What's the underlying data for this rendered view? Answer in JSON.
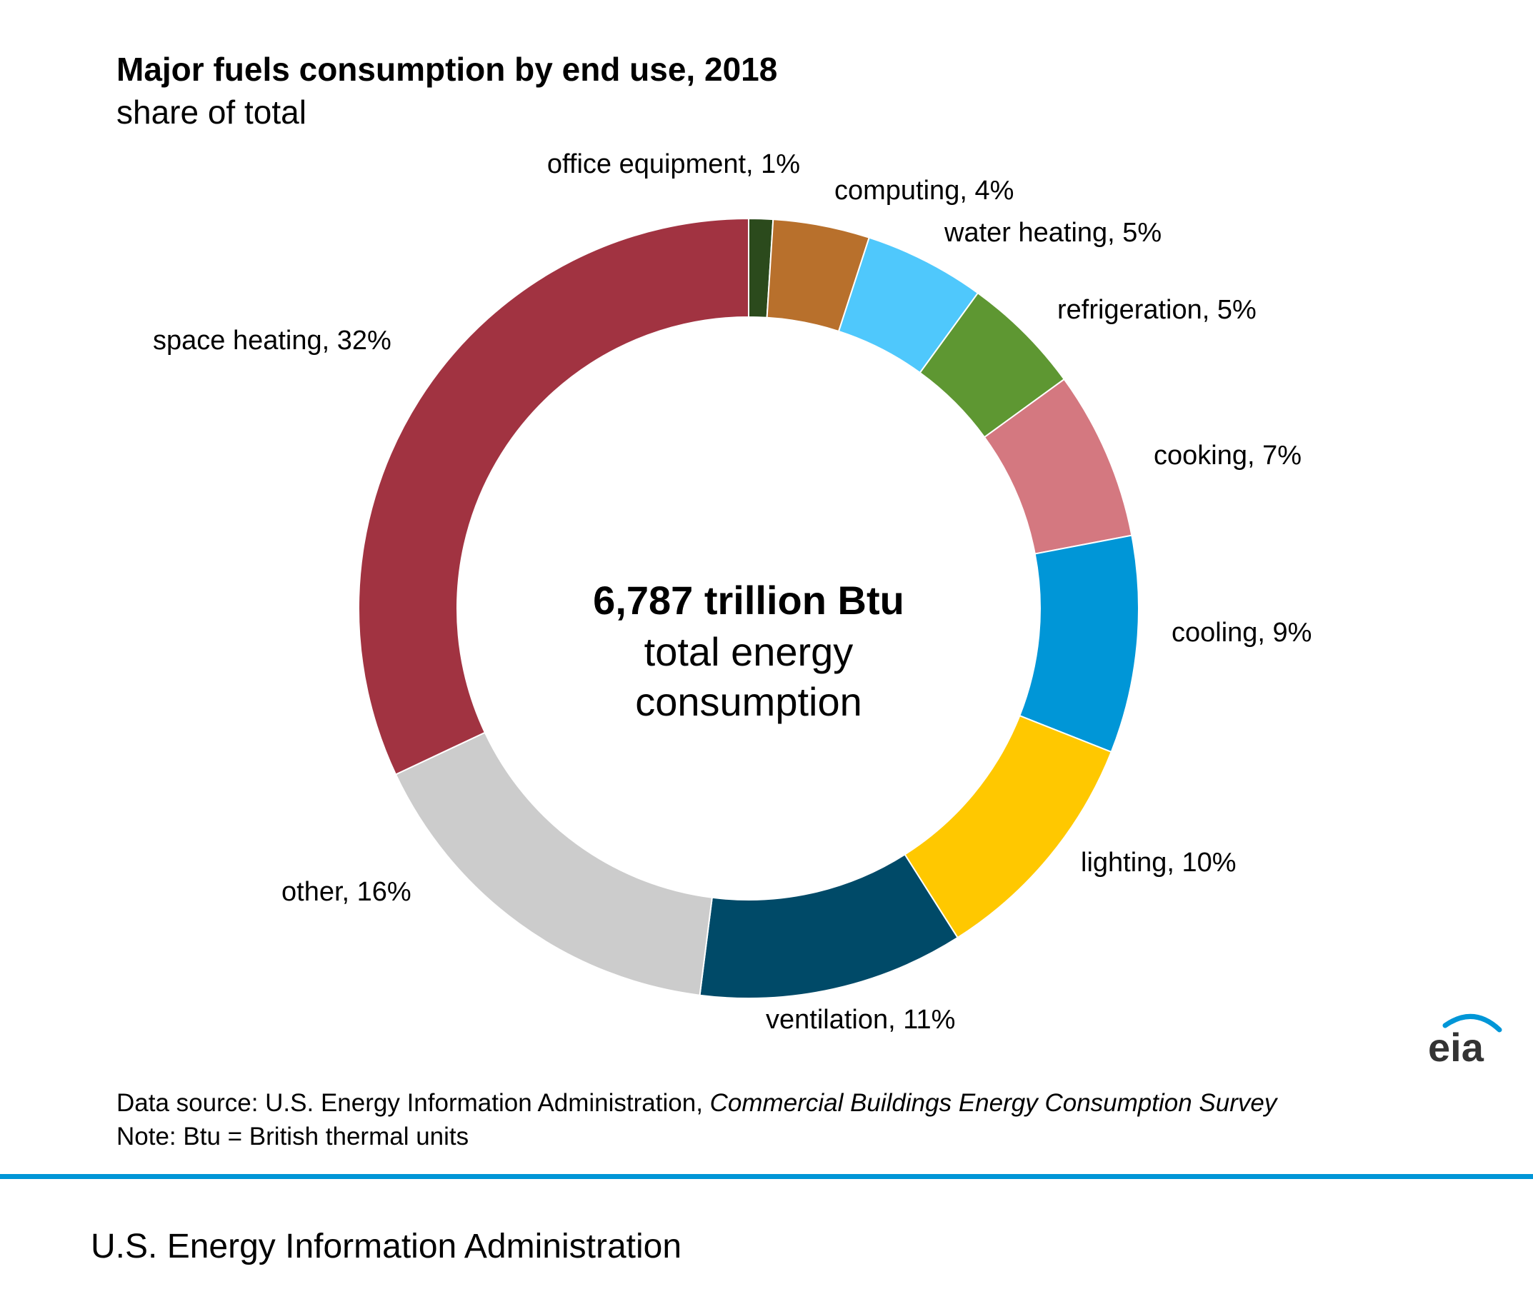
{
  "header": {
    "title": "Major fuels consumption by end use, 2018",
    "subtitle": "share of total"
  },
  "chart_data": {
    "type": "pie",
    "title": "Major fuels consumption by end use, 2018",
    "subtitle": "share of total",
    "center_value": "6,787 trillion Btu",
    "center_caption_line1": "total energy",
    "center_caption_line2": "consumption",
    "unit": "percent",
    "slices": [
      {
        "name": "office equipment",
        "value": 1,
        "label": "office equipment, 1%",
        "color": "#2b4a1c"
      },
      {
        "name": "computing",
        "value": 4,
        "label": "computing, 4%",
        "color": "#b8702c"
      },
      {
        "name": "water heating",
        "value": 5,
        "label": "water heating, 5%",
        "color": "#4fc8fc"
      },
      {
        "name": "refrigeration",
        "value": 5,
        "label": "refrigeration, 5%",
        "color": "#5e9732"
      },
      {
        "name": "cooking",
        "value": 7,
        "label": "cooking, 7%",
        "color": "#d47880"
      },
      {
        "name": "cooling",
        "value": 9,
        "label": "cooling, 9%",
        "color": "#0096d7"
      },
      {
        "name": "lighting",
        "value": 10,
        "label": "lighting, 10%",
        "color": "#ffc800"
      },
      {
        "name": "ventilation",
        "value": 11,
        "label": "ventilation, 11%",
        "color": "#004a68"
      },
      {
        "name": "other",
        "value": 16,
        "label": "other, 16%",
        "color": "#cccccc"
      },
      {
        "name": "space heating",
        "value": 32,
        "label": "space heating, 32%",
        "color": "#a13341"
      }
    ]
  },
  "source": {
    "prefix": "Data source: U.S. Energy Information Administration, ",
    "survey": "Commercial Buildings Energy Consumption Survey"
  },
  "note": "Note: Btu = British thermal units",
  "logo": {
    "text": "eia",
    "color": "#0096d7"
  },
  "footer": {
    "text": "U.S. Energy Information Administration",
    "rule_color": "#0096d7"
  }
}
